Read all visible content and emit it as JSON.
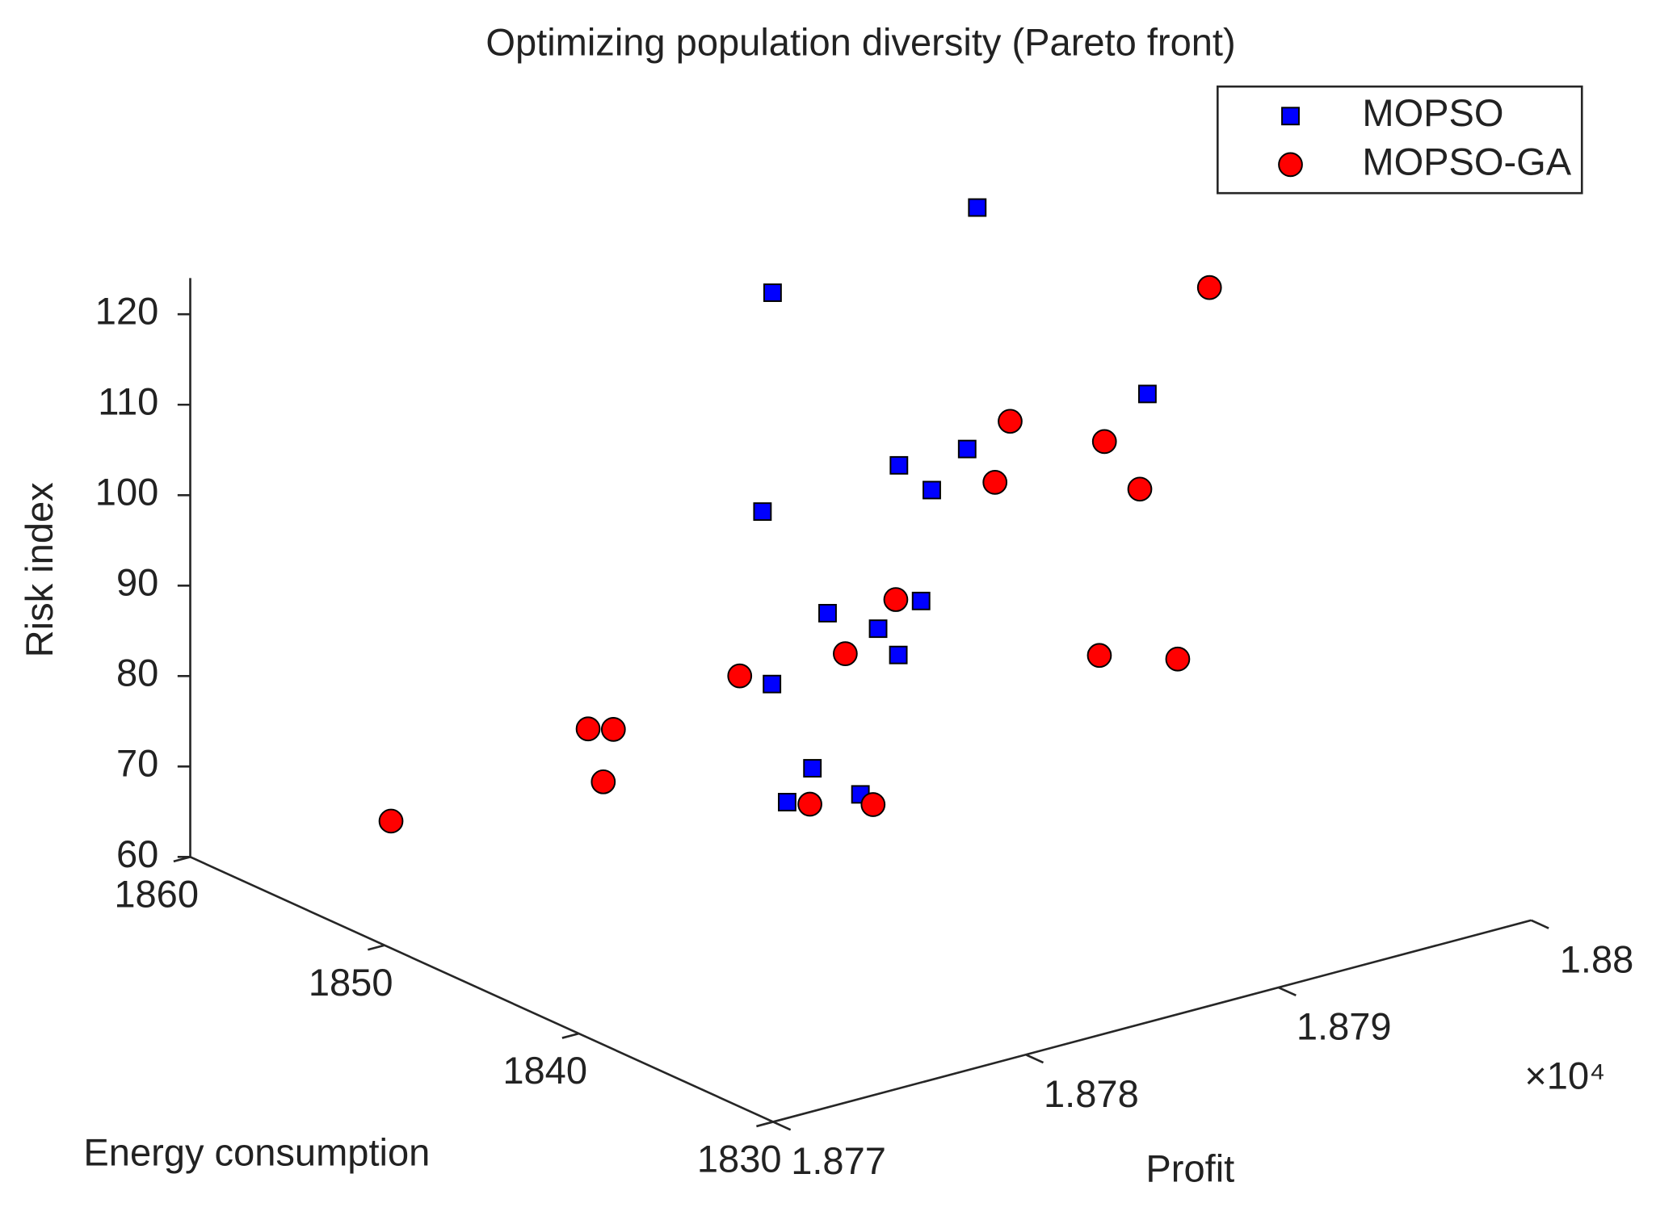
{
  "chart_data": {
    "type": "scatter3d",
    "title": "Optimizing population diversity (Pareto front)",
    "x_label": "Profit",
    "y_label": "Energy consumption",
    "z_label": "Risk index",
    "x_exponent_label": "×10⁴",
    "xlim": [
      18770,
      18800
    ],
    "ylim": [
      1830,
      1860
    ],
    "zlim": [
      60,
      124
    ],
    "xticks": [
      {
        "value": 18770,
        "label": "1.877"
      },
      {
        "value": 18780,
        "label": "1.878"
      },
      {
        "value": 18790,
        "label": "1.879"
      },
      {
        "value": 18800,
        "label": "1.88"
      }
    ],
    "yticks": [
      1830,
      1840,
      1850,
      1860
    ],
    "zticks": [
      60,
      70,
      80,
      90,
      100,
      110,
      120
    ],
    "legend": "upper right",
    "series": [
      {
        "name": "MOPSO",
        "color": "#0000ff",
        "marker": "square",
        "x": [
          18797.3,
          18789.2,
          18792.5,
          18796.9,
          18794.2,
          18795.5,
          18788.8,
          18776.0,
          18779.7,
          18778.0,
          18778.8,
          18773.8,
          18775.4,
          18774.4,
          18777.3
        ],
        "y": [
          1855,
          1855,
          1840,
          1855,
          1855,
          1855,
          1855,
          1835,
          1835,
          1835,
          1835,
          1835,
          1835,
          1835,
          1835
        ],
        "z": [
          116.4,
          113.0,
          114.0,
          90.0,
          90.2,
          86.5,
          89.1,
          106.9,
          105.5,
          103.7,
          100.2,
          100.7,
          90.2,
          87.2,
          85.9
        ]
      },
      {
        "name": "MOPSO-GA",
        "color": "#ff0000",
        "marker": "circle",
        "x": [
          18798.8,
          18798.6,
          18790.8,
          18798.0,
          18792.2,
          18778.7,
          18776.7,
          18790.6,
          18793.7,
          18787.9,
          18781.9,
          18782.9,
          18782.5,
          18774.1,
          18775.3,
          18777.8
        ],
        "y": [
          1845,
          1855,
          1840,
          1855,
          1840,
          1835,
          1835,
          1840,
          1840,
          1855,
          1855,
          1855,
          1855,
          1855,
          1835,
          1835
        ],
        "z": [
          116.2,
          91.8,
          110.0,
          85.5,
          103.7,
          106.4,
          101.9,
          86.5,
          83.8,
          71.6,
          70.2,
          69.4,
          63.9,
          65.8,
          86.3,
          84.4
        ]
      }
    ]
  }
}
